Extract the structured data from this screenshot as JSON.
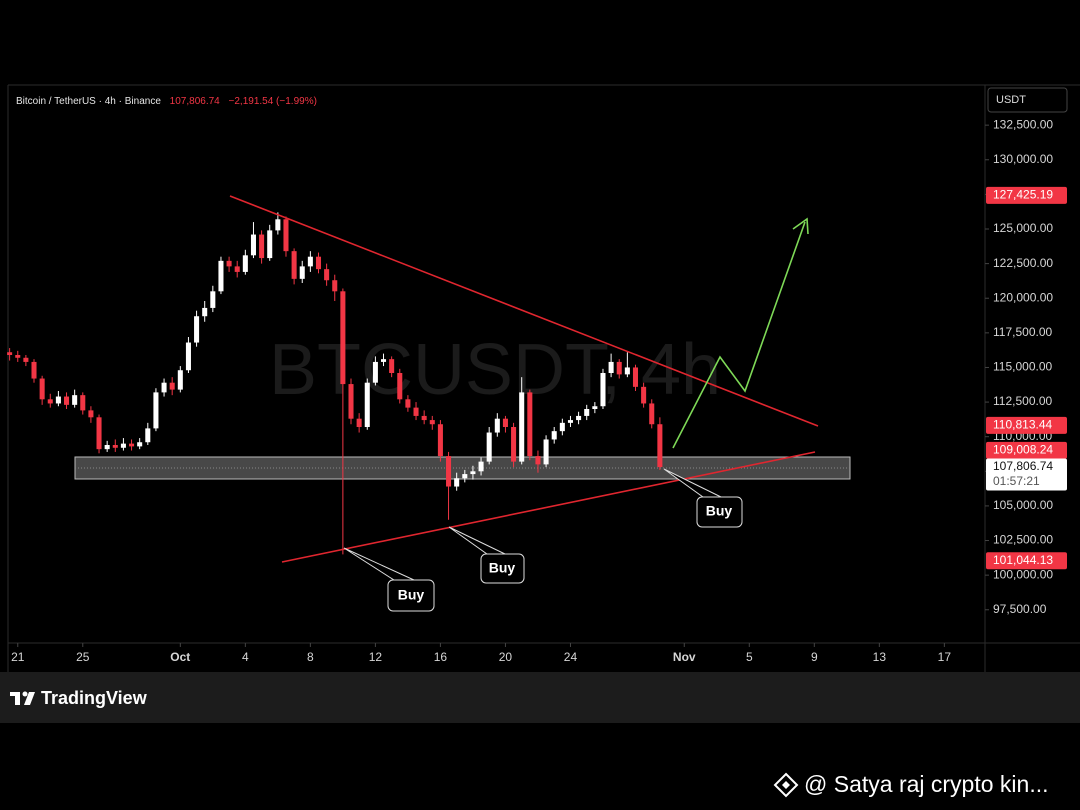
{
  "chart_data": {
    "type": "candlestick",
    "header": {
      "symbol": "Bitcoin / TetherUS · 4h · Binance",
      "last": "107,806.74",
      "change": "−2,191.54 (−1.99%)"
    },
    "watermark": "BTCUSDT, 4h",
    "currency": "USDT",
    "up_color": "#ffffff",
    "down_color": "#f23645",
    "xlim": [
      -10.6,
      49.5
    ],
    "xticks": [
      {
        "value": -10,
        "label": "21"
      },
      {
        "value": -6,
        "label": "25"
      },
      {
        "value": 0,
        "label": "Oct"
      },
      4,
      8,
      12,
      16,
      20,
      24,
      {
        "value": 31,
        "label": "Nov"
      },
      {
        "value": 35,
        "label": "5"
      },
      {
        "value": 39,
        "label": "9"
      },
      {
        "value": 43,
        "label": "13"
      },
      {
        "value": 47,
        "label": "17"
      }
    ],
    "ylim": [
      95100,
      135400
    ],
    "yticks": [
      {
        "value": 97500,
        "label": "97,500.00"
      },
      {
        "value": 100000,
        "label": "100,000.00"
      },
      {
        "value": 102500,
        "label": "102,500.00"
      },
      {
        "value": 105000,
        "label": "105,000.00"
      },
      {
        "value": 107500,
        "label": "107,500.00"
      },
      {
        "value": 110000,
        "label": "110,000.00"
      },
      {
        "value": 112500,
        "label": "112,500.00"
      },
      {
        "value": 115000,
        "label": "115,000.00"
      },
      {
        "value": 117500,
        "label": "117,500.00"
      },
      {
        "value": 120000,
        "label": "120,000.00"
      },
      {
        "value": 122500,
        "label": "122,500.00"
      },
      {
        "value": 125000,
        "label": "125,000.00"
      },
      {
        "value": 127500,
        "label": "127,500.00"
      },
      {
        "value": 130000,
        "label": "130,000.00"
      },
      {
        "value": 132500,
        "label": "132,500.00"
      }
    ],
    "price_labels": [
      {
        "value": 127425.19,
        "label": "127,425.19",
        "color": "#f23645"
      },
      {
        "value": 110813.44,
        "label": "110,813.44",
        "color": "#f23645"
      },
      {
        "value": 109008.24,
        "label": "109,008.24",
        "color": "#f23645"
      },
      {
        "value": 107806.74,
        "label": "107,806.74",
        "color": "#ffffff",
        "countdown": "01:57:21"
      },
      {
        "value": 101044.13,
        "label": "101,044.13",
        "color": "#f23645"
      }
    ],
    "annotations": [
      "Buy",
      "Buy",
      "Buy"
    ],
    "x": [
      -10.5,
      -10,
      -9.5,
      -9,
      -8.5,
      -8,
      -7.5,
      -7,
      -6.5,
      -6,
      -5.5,
      -5,
      -4.5,
      -4,
      -3.5,
      -3,
      -2.5,
      -2,
      -1.5,
      -1,
      -0.5,
      0,
      0.5,
      1,
      1.5,
      2,
      2.5,
      3,
      3.5,
      4,
      4.5,
      5,
      5.5,
      6,
      6.5,
      7,
      7.5,
      8,
      8.5,
      9,
      9.5,
      10,
      10.5,
      11,
      11.5,
      12,
      12.5,
      13,
      13.5,
      14,
      14.5,
      15,
      15.5,
      16,
      16.5,
      17,
      17.5,
      18,
      18.5,
      19,
      19.5,
      20,
      20.5,
      21,
      21.5,
      22,
      22.5,
      23,
      23.5,
      24,
      24.5,
      25,
      25.5,
      26,
      26.5,
      27,
      27.5,
      28,
      28.5,
      29,
      29.5
    ],
    "candles": [
      [
        116100,
        116400,
        115500,
        115900
      ],
      [
        115900,
        116200,
        115400,
        115700
      ],
      [
        115700,
        115900,
        115100,
        115400
      ],
      [
        115400,
        115600,
        113900,
        114200
      ],
      [
        114200,
        114400,
        112300,
        112700
      ],
      [
        112700,
        113100,
        112100,
        112400
      ],
      [
        112400,
        113300,
        112200,
        112900
      ],
      [
        112900,
        113200,
        112000,
        112300
      ],
      [
        112300,
        113400,
        112100,
        113000
      ],
      [
        113000,
        113200,
        111600,
        111900
      ],
      [
        111900,
        112200,
        111000,
        111400
      ],
      [
        111400,
        111600,
        108800,
        109100
      ],
      [
        109100,
        109700,
        108900,
        109400
      ],
      [
        109400,
        109800,
        108900,
        109200
      ],
      [
        109200,
        109900,
        109000,
        109500
      ],
      [
        109500,
        109800,
        109000,
        109300
      ],
      [
        109300,
        109900,
        109100,
        109600
      ],
      [
        109600,
        111000,
        109400,
        110600
      ],
      [
        110600,
        113500,
        110400,
        113200
      ],
      [
        113200,
        114200,
        112900,
        113900
      ],
      [
        113900,
        114300,
        113000,
        113400
      ],
      [
        113400,
        115100,
        113200,
        114800
      ],
      [
        114800,
        117200,
        114600,
        116800
      ],
      [
        116800,
        119100,
        116500,
        118700
      ],
      [
        118700,
        119800,
        118300,
        119300
      ],
      [
        119300,
        120900,
        119000,
        120500
      ],
      [
        120500,
        123000,
        120300,
        122700
      ],
      [
        122700,
        123000,
        121900,
        122300
      ],
      [
        122300,
        122700,
        121500,
        121900
      ],
      [
        121900,
        123500,
        121700,
        123100
      ],
      [
        123100,
        125500,
        122900,
        124600
      ],
      [
        124600,
        124900,
        122500,
        122900
      ],
      [
        122900,
        125300,
        122700,
        124900
      ],
      [
        124900,
        126200,
        124600,
        125700
      ],
      [
        125700,
        125900,
        123000,
        123400
      ],
      [
        123400,
        123600,
        121000,
        121400
      ],
      [
        121400,
        122700,
        121100,
        122300
      ],
      [
        122300,
        123400,
        121900,
        123000
      ],
      [
        123000,
        123300,
        121800,
        122100
      ],
      [
        122100,
        122500,
        120900,
        121300
      ],
      [
        121300,
        121700,
        119800,
        120500
      ],
      [
        120500,
        120700,
        101500,
        113800
      ],
      [
        113800,
        114200,
        110900,
        111300
      ],
      [
        111300,
        111700,
        110300,
        110700
      ],
      [
        110700,
        114200,
        110500,
        113900
      ],
      [
        113900,
        115800,
        113700,
        115400
      ],
      [
        115400,
        116000,
        115100,
        115600
      ],
      [
        115600,
        115800,
        114300,
        114600
      ],
      [
        114600,
        114900,
        112400,
        112700
      ],
      [
        112700,
        113000,
        111800,
        112100
      ],
      [
        112100,
        112500,
        111200,
        111500
      ],
      [
        111500,
        111900,
        110900,
        111200
      ],
      [
        111200,
        111500,
        110500,
        110900
      ],
      [
        110900,
        111200,
        108200,
        108600
      ],
      [
        108600,
        108900,
        104000,
        106400
      ],
      [
        106400,
        107400,
        106100,
        107000
      ],
      [
        107000,
        107600,
        106700,
        107300
      ],
      [
        107300,
        107900,
        106900,
        107500
      ],
      [
        107500,
        108500,
        107200,
        108200
      ],
      [
        108200,
        110700,
        108000,
        110300
      ],
      [
        110300,
        111700,
        110000,
        111300
      ],
      [
        111300,
        111500,
        110300,
        110700
      ],
      [
        110700,
        111000,
        107800,
        108200
      ],
      [
        108200,
        114300,
        108000,
        113200
      ],
      [
        113200,
        113400,
        108300,
        108600
      ],
      [
        108600,
        109000,
        107400,
        108000
      ],
      [
        108000,
        110100,
        107800,
        109800
      ],
      [
        109800,
        110700,
        109500,
        110400
      ],
      [
        110400,
        111300,
        110100,
        111000
      ],
      [
        111000,
        111500,
        110700,
        111200
      ],
      [
        111200,
        111800,
        110900,
        111500
      ],
      [
        111500,
        112300,
        111200,
        112000
      ],
      [
        112000,
        112500,
        111700,
        112200
      ],
      [
        112200,
        114900,
        112000,
        114600
      ],
      [
        114600,
        116000,
        114300,
        115400
      ],
      [
        115400,
        115600,
        114200,
        114500
      ],
      [
        114500,
        116100,
        114300,
        115000
      ],
      [
        115000,
        115200,
        113300,
        113600
      ],
      [
        113600,
        113900,
        112100,
        112400
      ],
      [
        112400,
        112700,
        110600,
        110900
      ],
      [
        110900,
        111400,
        107600,
        107806.74
      ]
    ]
  },
  "footer": {
    "brand": "TradingView",
    "watermark": "@ Satya raj crypto kin..."
  }
}
